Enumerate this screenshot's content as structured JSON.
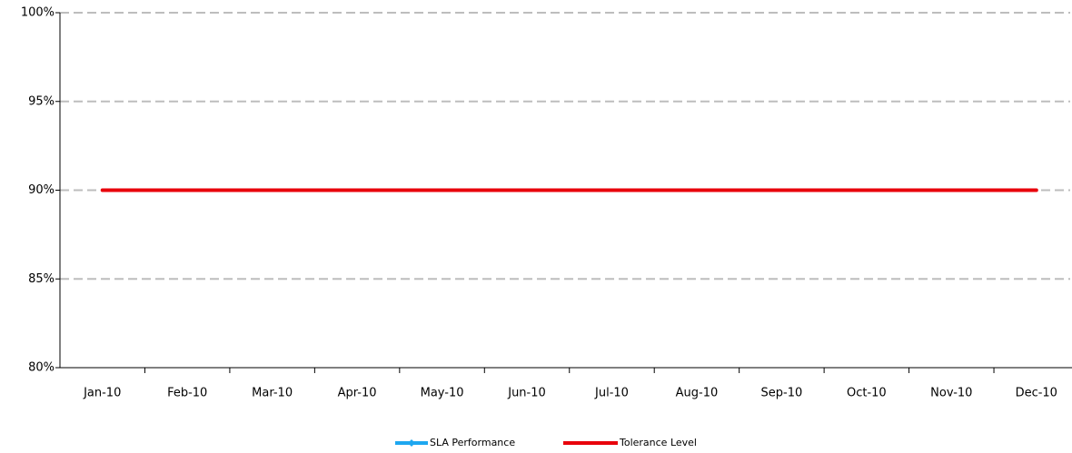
{
  "chart_data": {
    "type": "line",
    "categories": [
      "Jan-10",
      "Feb-10",
      "Mar-10",
      "Apr-10",
      "May-10",
      "Jun-10",
      "Jul-10",
      "Aug-10",
      "Sep-10",
      "Oct-10",
      "Nov-10",
      "Dec-10"
    ],
    "series": [
      {
        "name": "SLA Performance",
        "color": "#1ea7f0",
        "values": [
          null,
          null,
          null,
          null,
          null,
          null,
          null,
          null,
          null,
          null,
          null,
          null
        ]
      },
      {
        "name": "Tolerance Level",
        "color": "#e8000b",
        "values": [
          90,
          90,
          90,
          90,
          90,
          90,
          90,
          90,
          90,
          90,
          90,
          90
        ]
      }
    ],
    "ylim": [
      80,
      100
    ],
    "yticks": [
      {
        "value": 80,
        "label": "80%"
      },
      {
        "value": 85,
        "label": "85%"
      },
      {
        "value": 90,
        "label": "90%"
      },
      {
        "value": 95,
        "label": "95%"
      },
      {
        "value": 100,
        "label": "100%"
      }
    ],
    "grid": true,
    "legend": "bottom"
  }
}
